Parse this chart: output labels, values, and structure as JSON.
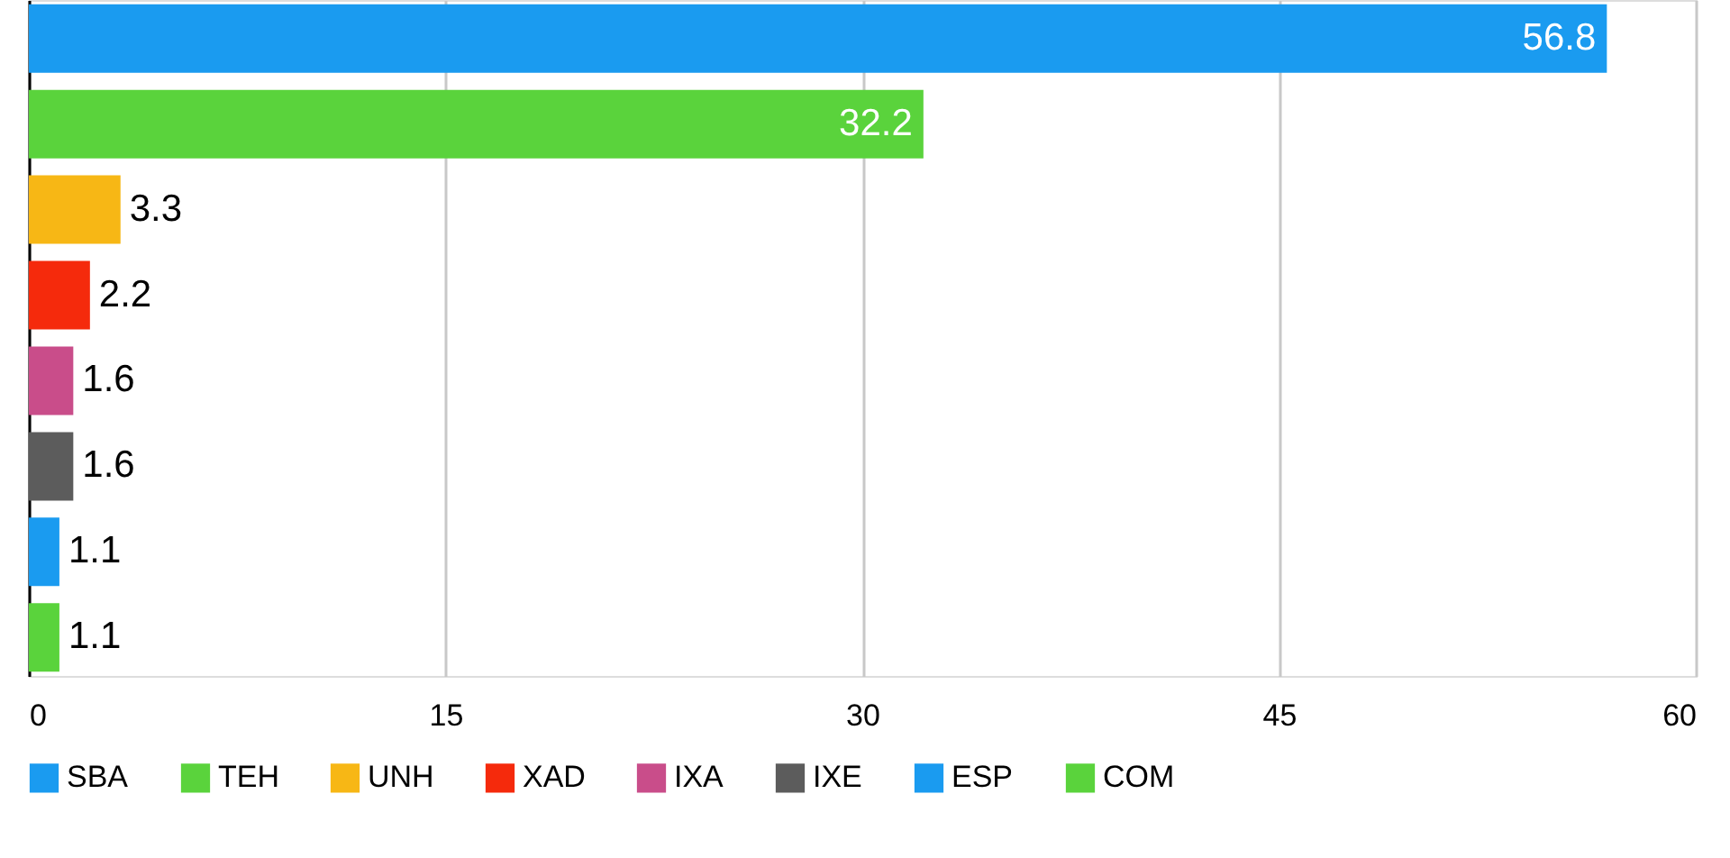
{
  "chart_data": {
    "type": "bar",
    "orientation": "horizontal",
    "categories": [
      null,
      null,
      null,
      null,
      null,
      null,
      null,
      null
    ],
    "series": [
      {
        "name": "SBA",
        "color": "#1a9bf0",
        "values": [
          56.8,
          null,
          null,
          null,
          null,
          null,
          null,
          null
        ]
      },
      {
        "name": "TEH",
        "color": "#5ad33c",
        "values": [
          null,
          32.2,
          null,
          null,
          null,
          null,
          null,
          null
        ]
      },
      {
        "name": "UNH",
        "color": "#f7b715",
        "values": [
          null,
          null,
          3.3,
          null,
          null,
          null,
          null,
          null
        ]
      },
      {
        "name": "XAD",
        "color": "#f52a0c",
        "values": [
          null,
          null,
          null,
          2.2,
          null,
          null,
          null,
          null
        ]
      },
      {
        "name": "IXA",
        "color": "#c94d8a",
        "values": [
          null,
          null,
          null,
          null,
          1.6,
          null,
          null,
          null
        ]
      },
      {
        "name": "IXE",
        "color": "#5c5c5c",
        "values": [
          null,
          null,
          null,
          null,
          null,
          1.6,
          null,
          null
        ]
      },
      {
        "name": "ESP",
        "color": "#1a9bf0",
        "values": [
          null,
          null,
          null,
          null,
          null,
          null,
          1.1,
          null
        ]
      },
      {
        "name": "COM",
        "color": "#5ad33c",
        "values": [
          null,
          null,
          null,
          null,
          null,
          null,
          null,
          1.1
        ]
      }
    ],
    "xlim": [
      0,
      60
    ],
    "xticks": [
      0,
      15,
      30,
      45,
      60
    ],
    "grid": "x",
    "legend": "bottom",
    "data_labels": true,
    "tick_labels": "x"
  }
}
